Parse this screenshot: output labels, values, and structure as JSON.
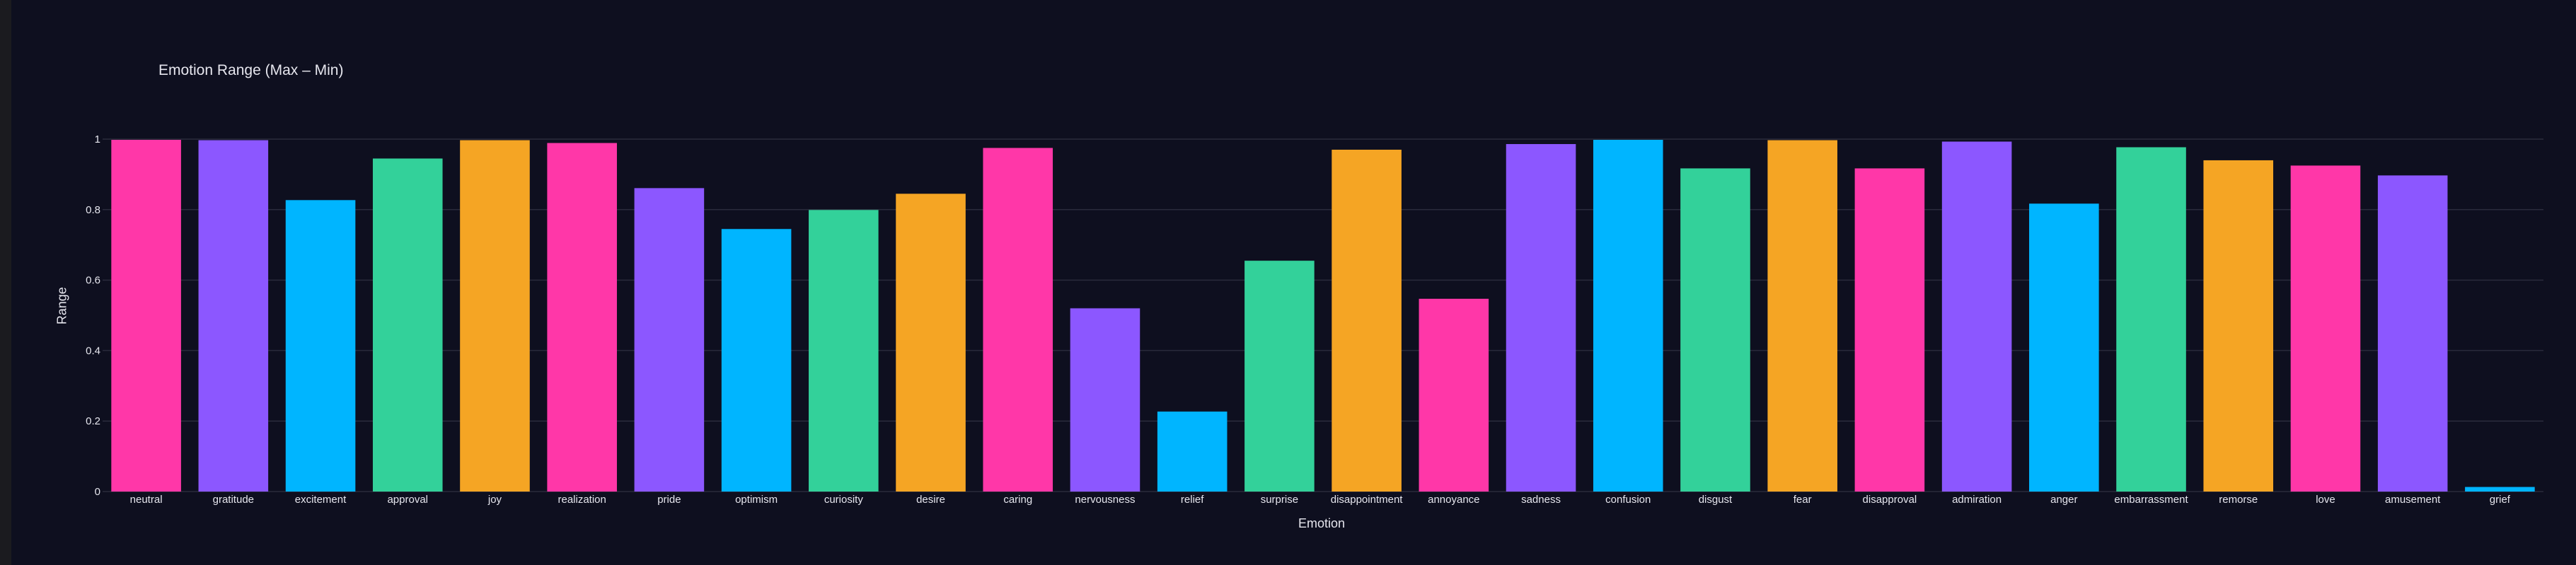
{
  "chart_data": {
    "type": "bar",
    "title": "Emotion Range (Max – Min)",
    "xlabel": "Emotion",
    "ylabel": "Range",
    "ylim": [
      0,
      1
    ],
    "y_ticks": [
      "0",
      "0.2",
      "0.4",
      "0.6",
      "0.8",
      "1"
    ],
    "grid": true,
    "categories": [
      "neutral",
      "gratitude",
      "excitement",
      "approval",
      "joy",
      "realization",
      "pride",
      "optimism",
      "curiosity",
      "desire",
      "caring",
      "nervousness",
      "relief",
      "surprise",
      "disappointment",
      "annoyance",
      "sadness",
      "confusion",
      "disgust",
      "fear",
      "disapproval",
      "admiration",
      "anger",
      "embarrassment",
      "remorse",
      "love",
      "amusement",
      "grief"
    ],
    "values": [
      0.998,
      0.997,
      0.827,
      0.945,
      0.997,
      0.989,
      0.861,
      0.745,
      0.799,
      0.845,
      0.975,
      0.52,
      0.227,
      0.655,
      0.97,
      0.547,
      0.986,
      0.998,
      0.917,
      0.997,
      0.917,
      0.993,
      0.817,
      0.977,
      0.94,
      0.925,
      0.897,
      0.013
    ],
    "colors": [
      "#ff37a8",
      "#8c57ff",
      "#00b5ff",
      "#33d19a",
      "#f5a524",
      "#ff37a8",
      "#8c57ff",
      "#00b5ff",
      "#33d19a",
      "#f5a524",
      "#ff37a8",
      "#8c57ff",
      "#00b5ff",
      "#33d19a",
      "#f5a524",
      "#ff37a8",
      "#8c57ff",
      "#00b5ff",
      "#33d19a",
      "#f5a524",
      "#ff37a8",
      "#8c57ff",
      "#00b5ff",
      "#33d19a",
      "#f5a524",
      "#ff37a8",
      "#8c57ff",
      "#00b5ff"
    ]
  },
  "colors": {
    "background": "#0e0f1f",
    "grid": "#2a2b3c",
    "text": "#e6e6ee"
  }
}
